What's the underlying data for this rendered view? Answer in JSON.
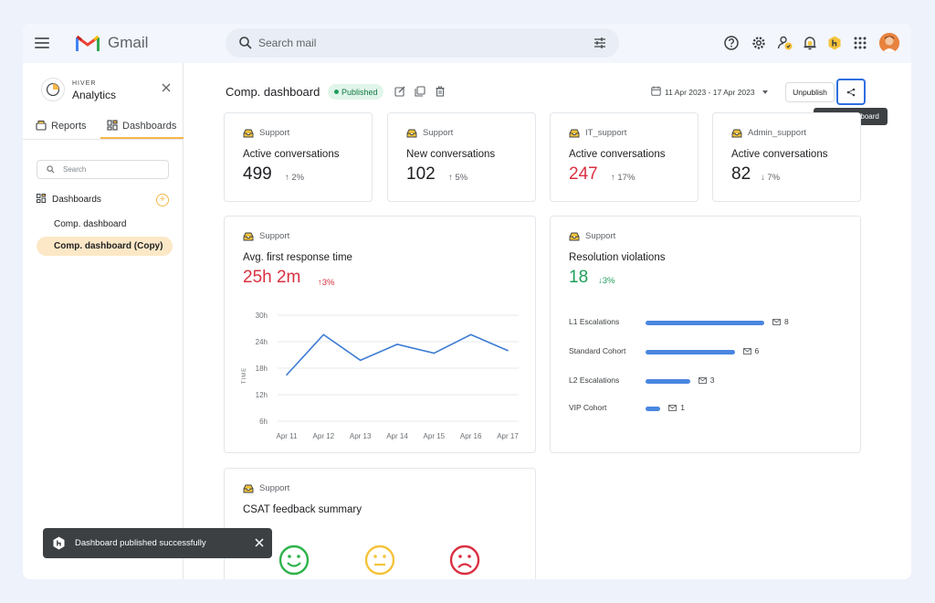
{
  "gmail": {
    "app_name": "Gmail",
    "search_placeholder": "Search mail"
  },
  "sidebar": {
    "brand_small": "HIVER",
    "brand_title": "Analytics",
    "tabs": [
      {
        "label": "Reports"
      },
      {
        "label": "Dashboards"
      }
    ],
    "search_placeholder": "Search",
    "section_label": "Dashboards",
    "items": [
      {
        "label": "Comp. dashboard"
      },
      {
        "label": "Comp. dashboard (Copy)"
      }
    ]
  },
  "header": {
    "title": "Comp. dashboard",
    "status": "Published",
    "date_range": "11 Apr 2023 - 17 Apr 2023",
    "unpublish_label": "Unpublish",
    "share_tooltip": "Share Dashboard"
  },
  "stat_cards": [
    {
      "tag": "Support",
      "metric": "Active conversations",
      "value": "499",
      "change": "2%",
      "direction": "up",
      "value_color": "#202124"
    },
    {
      "tag": "Support",
      "metric": "New conversations",
      "value": "102",
      "change": "5%",
      "direction": "up",
      "value_color": "#202124"
    },
    {
      "tag": "IT_support",
      "metric": "Active conversations",
      "value": "247",
      "change": "17%",
      "direction": "up",
      "value_color": "#d93040"
    },
    {
      "tag": "Admin_support",
      "metric": "Active conversations",
      "value": "82",
      "change": "7%",
      "direction": "down",
      "value_color": "#202124"
    }
  ],
  "response_card": {
    "tag": "Support",
    "metric": "Avg. first response time",
    "value": "25h 2m",
    "change": "3%",
    "value_color": "#d93040"
  },
  "chart_data": {
    "type": "line",
    "x": [
      "Apr 11",
      "Apr 12",
      "Apr 13",
      "Apr 14",
      "Apr 15",
      "Apr 16",
      "Apr 17"
    ],
    "values": [
      16.5,
      25.6,
      19.8,
      23.4,
      21.4,
      25.6,
      22.0
    ],
    "yticks": [
      "30h",
      "24h",
      "18h",
      "12h",
      "6h"
    ],
    "ylabel": "TIME",
    "ylim": [
      6,
      30
    ],
    "line_color": "#3b7bd4",
    "grid": true
  },
  "violations_card": {
    "tag": "Support",
    "metric": "Resolution violations",
    "value": "18",
    "change": "3%",
    "value_color": "#1e9e5a",
    "bars": [
      {
        "label": "L1 Escalations",
        "value": 8
      },
      {
        "label": "Standard Cohort",
        "value": 6
      },
      {
        "label": "L2 Escalations",
        "value": 3
      },
      {
        "label": "VIP Cohort",
        "value": 1
      }
    ]
  },
  "csat_card": {
    "tag": "Support",
    "metric": "CSAT feedback summary"
  },
  "toast": {
    "message": "Dashboard published successfully"
  }
}
